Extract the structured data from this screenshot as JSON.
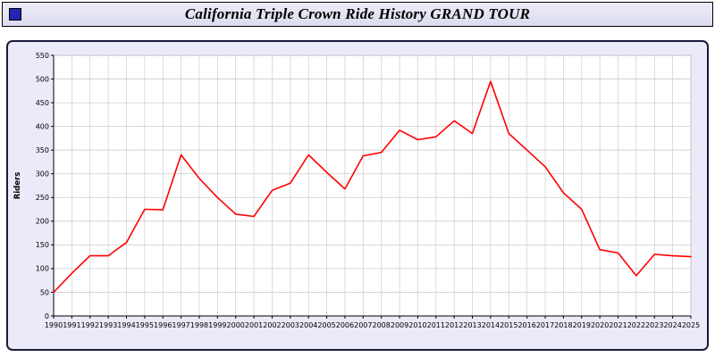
{
  "header": {
    "title": "California Triple Crown Ride History GRAND TOUR",
    "window_icon_color": "#2525b5"
  },
  "chart_data": {
    "type": "line",
    "title": "California Triple Crown Ride History GRAND TOUR",
    "xlabel": "",
    "ylabel": "Riders",
    "ylim": [
      0,
      550
    ],
    "ytick_step": 50,
    "grid": true,
    "legend_position": "none",
    "plot_bg": "#ffffff",
    "panel_bg": "#eaeaf8",
    "grid_color": "#cccccc",
    "axis_color": "#000000",
    "x": [
      1990,
      1991,
      1992,
      1993,
      1994,
      1995,
      1996,
      1997,
      1998,
      1999,
      2000,
      2001,
      2002,
      2003,
      2004,
      2005,
      2006,
      2007,
      2008,
      2009,
      2010,
      2011,
      2012,
      2013,
      2014,
      2015,
      2016,
      2017,
      2018,
      2019,
      2020,
      2021,
      2022,
      2023,
      2024,
      2025
    ],
    "series": [
      {
        "name": "Riders",
        "color": "#ff0000",
        "values": [
          50,
          90,
          127,
          127,
          155,
          225,
          224,
          340,
          290,
          250,
          215,
          210,
          265,
          280,
          340,
          303,
          268,
          338,
          345,
          392,
          372,
          378,
          412,
          385,
          495,
          385,
          350,
          315,
          260,
          225,
          140,
          133,
          85,
          130,
          127,
          125
        ]
      }
    ]
  }
}
